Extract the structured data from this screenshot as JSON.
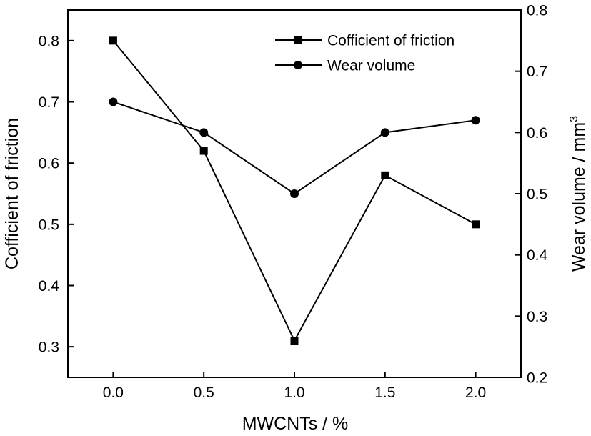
{
  "chart_data": {
    "type": "line",
    "x": [
      0.0,
      0.5,
      1.0,
      1.5,
      2.0
    ],
    "x_tick_labels": [
      "0.0",
      "0.5",
      "1.0",
      "1.5",
      "2.0"
    ],
    "xlabel": "MWCNTs / %",
    "xlim": [
      -0.25,
      2.25
    ],
    "ylabel_left": "Cofficient of friction",
    "ylim_left": [
      0.25,
      0.85
    ],
    "y_left_tick_labels": [
      "0.3",
      "0.4",
      "0.5",
      "0.6",
      "0.7",
      "0.8"
    ],
    "ylabel_right": "Wear volume / mm",
    "ylabel_right_superscript": "3",
    "ylim_right": [
      0.2,
      0.8
    ],
    "y_right_tick_labels": [
      "0.2",
      "0.3",
      "0.4",
      "0.5",
      "0.6",
      "0.7",
      "0.8"
    ],
    "grid": false,
    "legend_position": "top-right",
    "series": [
      {
        "name": "Cofficient of friction",
        "axis": "left",
        "marker": "square",
        "values": [
          0.8,
          0.62,
          0.31,
          0.58,
          0.5
        ]
      },
      {
        "name": "Wear volume",
        "axis": "right",
        "marker": "circle",
        "values": [
          0.65,
          0.6,
          0.5,
          0.6,
          0.62
        ]
      }
    ]
  }
}
